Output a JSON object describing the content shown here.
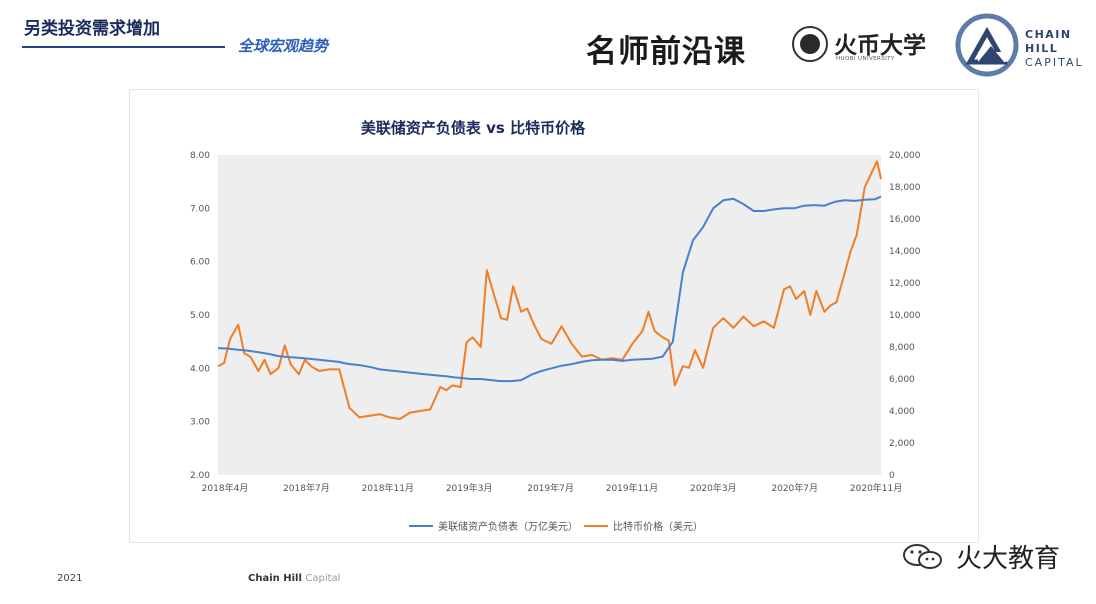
{
  "header": {
    "title": "另类投资需求增加",
    "subtitle": "全球宏观趋势",
    "brand": "名师前沿课",
    "university_name": "火币大学",
    "university_en": "HUOBI UNIVERSITY",
    "company_line1": "CHAIN",
    "company_line2": "HILL",
    "company_line3": "CAPITAL"
  },
  "footer": {
    "year": "2021",
    "company": "Chain Hill",
    "company_suffix": "Capital"
  },
  "watermark": {
    "text": "火大教育"
  },
  "colors": {
    "fed": "#4a7fd0",
    "btc": "#f07d28",
    "plot_bg": "#eeeeee",
    "title": "#1b2a5c"
  },
  "chart_data": {
    "type": "line",
    "title": "美联储资产负债表 vs 比特币价格",
    "x_ticks": [
      "2018年4月",
      "2018年7月",
      "2018年11月",
      "2019年3月",
      "2019年7月",
      "2019年11月",
      "2020年3月",
      "2020年7月",
      "2020年11月"
    ],
    "y_left": {
      "ylim": [
        2,
        8
      ],
      "ticks": [
        "2.00",
        "3.00",
        "4.00",
        "5.00",
        "6.00",
        "7.00",
        "8.00"
      ]
    },
    "y_right": {
      "ylim": [
        0,
        20000
      ],
      "ticks": [
        "0",
        "2,000",
        "4,000",
        "6,000",
        "8,000",
        "10,000",
        "12,000",
        "14,000",
        "16,000",
        "18,000",
        "20,000"
      ]
    },
    "grid": false,
    "legend_position": "bottom",
    "series": [
      {
        "name": "美联储资产负债表（万亿美元）",
        "axis": "left",
        "x": [
          0,
          0.5,
          1,
          1.5,
          2,
          2.5,
          3,
          3.5,
          4,
          4.5,
          5,
          5.5,
          6,
          6.2,
          6.5,
          6.8,
          7,
          7.3,
          7.6,
          8,
          8.5,
          9,
          9.5,
          10,
          10.5,
          11,
          11.3,
          11.5,
          11.7,
          12,
          12.5,
          13,
          13.5,
          14,
          14.5,
          15,
          15.5,
          16,
          16.5,
          17,
          17.5,
          18,
          18.5,
          19,
          19.5,
          20,
          20.5,
          21,
          21.5,
          22,
          22.5,
          23,
          23.5,
          24,
          24.5,
          25,
          25.5,
          26,
          26.5,
          27,
          27.5,
          28,
          28.5,
          29,
          29.5,
          30,
          30.5,
          31,
          31.5,
          32,
          32.5,
          32.8
        ],
        "values": [
          4.38,
          4.37,
          4.35,
          4.33,
          4.3,
          4.27,
          4.23,
          4.21,
          4.2,
          4.18,
          4.16,
          4.14,
          4.12,
          4.1,
          4.08,
          4.07,
          4.06,
          4.04,
          4.02,
          3.98,
          3.96,
          3.94,
          3.92,
          3.9,
          3.88,
          3.86,
          3.85,
          3.84,
          3.83,
          3.82,
          3.8,
          3.8,
          3.78,
          3.76,
          3.76,
          3.78,
          3.88,
          3.95,
          4.0,
          4.05,
          4.08,
          4.12,
          4.15,
          4.16,
          4.16,
          4.14,
          4.16,
          4.17,
          4.18,
          4.22,
          4.5,
          5.8,
          6.4,
          6.65,
          7.0,
          7.15,
          7.18,
          7.08,
          6.95,
          6.95,
          6.98,
          7.0,
          7.0,
          7.05,
          7.06,
          7.05,
          7.12,
          7.15,
          7.14,
          7.16,
          7.17,
          7.22
        ]
      },
      {
        "name": "比特币价格（美元）",
        "axis": "right",
        "x": [
          0,
          0.3,
          0.6,
          1,
          1.3,
          1.6,
          2,
          2.3,
          2.6,
          3,
          3.3,
          3.6,
          4,
          4.3,
          4.6,
          5,
          5.5,
          6,
          6.5,
          7,
          7.5,
          8,
          8.5,
          9,
          9.5,
          10,
          10.5,
          11,
          11.3,
          11.6,
          12,
          12.3,
          12.6,
          13,
          13.3,
          13.6,
          14,
          14.3,
          14.6,
          15,
          15.3,
          15.6,
          16,
          16.5,
          17,
          17.5,
          18,
          18.5,
          19,
          19.5,
          20,
          20.5,
          21,
          21.3,
          21.6,
          22,
          22.3,
          22.6,
          23,
          23.3,
          23.6,
          24,
          24.5,
          25,
          25.5,
          26,
          26.5,
          27,
          27.5,
          28,
          28.3,
          28.6,
          29,
          29.3,
          29.6,
          30,
          30.3,
          30.6,
          31,
          31.3,
          31.6,
          32,
          32.3,
          32.6,
          32.8
        ],
        "values": [
          6800,
          7000,
          8500,
          9400,
          7600,
          7400,
          6500,
          7200,
          6300,
          6700,
          8100,
          6900,
          6300,
          7200,
          6800,
          6500,
          6600,
          6600,
          4200,
          3600,
          3700,
          3800,
          3600,
          3500,
          3900,
          4000,
          4100,
          5500,
          5300,
          5600,
          5500,
          8300,
          8600,
          8000,
          12800,
          11500,
          9800,
          9700,
          11800,
          10200,
          10400,
          9500,
          8500,
          8200,
          9300,
          8200,
          7400,
          7500,
          7200,
          7300,
          7200,
          8200,
          9000,
          10200,
          9000,
          8600,
          8400,
          5600,
          6800,
          6700,
          7800,
          6700,
          9200,
          9800,
          9200,
          9900,
          9300,
          9600,
          9200,
          11600,
          11800,
          11000,
          11500,
          10000,
          11500,
          10200,
          10600,
          10800,
          12600,
          14000,
          15000,
          18000,
          18800,
          19600,
          18500
        ]
      }
    ]
  }
}
